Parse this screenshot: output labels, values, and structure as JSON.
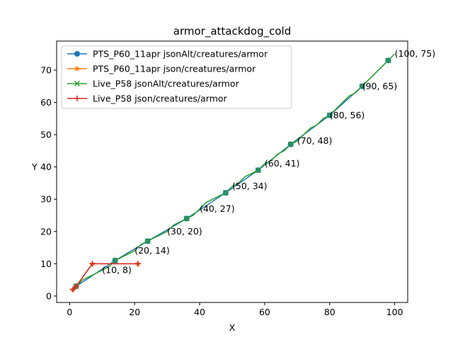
{
  "chart_data": {
    "type": "line",
    "title": "armor_attackdog_cold",
    "xlabel": "X",
    "ylabel": "Y",
    "xlim": [
      -4,
      104
    ],
    "ylim": [
      -2,
      79
    ],
    "xticks": [
      0,
      20,
      40,
      60,
      80,
      100
    ],
    "yticks": [
      0,
      10,
      20,
      30,
      40,
      50,
      60,
      70
    ],
    "grid": false,
    "legend_position": "top-left",
    "series": [
      {
        "name": "PTS_P60_11apr jsonAlt/creatures/armor",
        "color": "#1f77b4",
        "marker": "circle",
        "x": [
          2,
          14,
          24,
          36,
          48,
          58,
          68,
          80,
          90,
          98
        ],
        "y": [
          3,
          11,
          17,
          24,
          32,
          39,
          47,
          56,
          65,
          73
        ]
      },
      {
        "name": "PTS_P60_11apr json/creatures/armor",
        "color": "#ff7f0e",
        "marker": "star",
        "x": [
          1,
          2,
          7,
          21
        ],
        "y": [
          2,
          3,
          10,
          10
        ]
      },
      {
        "name": "Live_P58 jsonAlt/creatures/armor",
        "color": "#2ca02c",
        "marker": "x",
        "x": [
          1,
          2,
          4,
          6,
          8,
          10,
          12,
          14,
          16,
          18,
          20,
          22,
          24,
          26,
          28,
          30,
          32,
          34,
          36,
          38,
          40,
          42,
          44,
          46,
          48,
          50,
          52,
          54,
          56,
          58,
          60,
          62,
          64,
          66,
          68,
          70,
          72,
          74,
          76,
          78,
          80,
          82,
          84,
          86,
          88,
          90,
          92,
          94,
          96,
          98,
          100
        ],
        "y": [
          2,
          3,
          5,
          6,
          7,
          8,
          9,
          11,
          12,
          13,
          14,
          16,
          17,
          18,
          19,
          20,
          22,
          23,
          24,
          25,
          27,
          29,
          30,
          31,
          32,
          34,
          35,
          37,
          38,
          39,
          41,
          42,
          44,
          45,
          47,
          48,
          50,
          52,
          53,
          55,
          56,
          58,
          60,
          62,
          63,
          65,
          67,
          69,
          71,
          73,
          75
        ]
      },
      {
        "name": "Live_P58 json/creatures/armor",
        "color": "#d62728",
        "marker": "plus",
        "x": [
          1,
          2,
          7,
          21
        ],
        "y": [
          2,
          3,
          10,
          10
        ]
      }
    ],
    "annotations": [
      {
        "x": 10,
        "y": 8,
        "text": "(10, 8)"
      },
      {
        "x": 20,
        "y": 14,
        "text": "(20, 14)"
      },
      {
        "x": 30,
        "y": 20,
        "text": "(30, 20)"
      },
      {
        "x": 40,
        "y": 27,
        "text": "(40, 27)"
      },
      {
        "x": 50,
        "y": 34,
        "text": "(50, 34)"
      },
      {
        "x": 60,
        "y": 41,
        "text": "(60, 41)"
      },
      {
        "x": 70,
        "y": 48,
        "text": "(70, 48)"
      },
      {
        "x": 80,
        "y": 56,
        "text": "(80, 56)"
      },
      {
        "x": 90,
        "y": 65,
        "text": "(90, 65)"
      },
      {
        "x": 100,
        "y": 75,
        "text": "(100, 75)"
      }
    ]
  }
}
